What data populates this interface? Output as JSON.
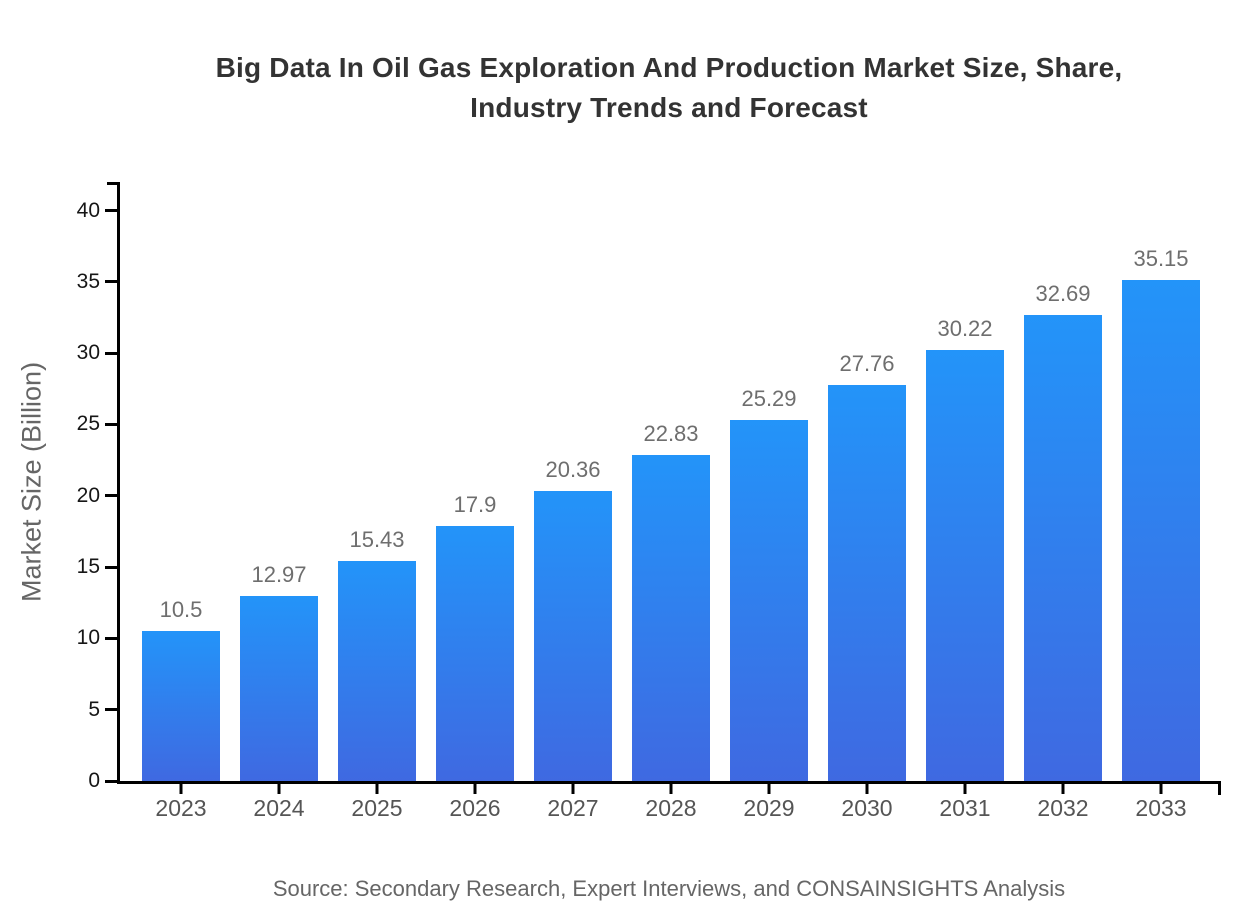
{
  "title": {
    "lines": [
      "Big Data In Oil Gas Exploration And Production Market Size, Share,",
      "Industry Trends and Forecast"
    ]
  },
  "source": "Source: Secondary Research, Expert Interviews, and CONSAINSIGHTS Analysis",
  "chart_data": {
    "type": "bar",
    "title": "Big Data In Oil Gas Exploration And Production Market Size, Share, Industry Trends and Forecast",
    "categories": [
      "2023",
      "2024",
      "2025",
      "2026",
      "2027",
      "2028",
      "2029",
      "2030",
      "2031",
      "2032",
      "2033"
    ],
    "values": [
      10.5,
      12.97,
      15.43,
      17.9,
      20.36,
      22.83,
      25.29,
      27.76,
      30.22,
      32.69,
      35.15
    ],
    "xlabel": "",
    "ylabel": "Market Size (Billion)",
    "ylim": [
      0,
      42
    ],
    "yticks": [
      0,
      5,
      10,
      15,
      20,
      25,
      30,
      35,
      40
    ],
    "grid": false,
    "legend": false,
    "data_labels": true,
    "bar_gradient_top": "#2394f9",
    "bar_gradient_bottom": "#3f69e1"
  },
  "colors": {
    "background": "#ffffff",
    "title": "#333333",
    "axis": "#000000",
    "y_tick_label": "#161616",
    "category_label": "#555555",
    "value_label": "#6e6e6e",
    "axis_title": "#666666",
    "source": "#666666"
  }
}
